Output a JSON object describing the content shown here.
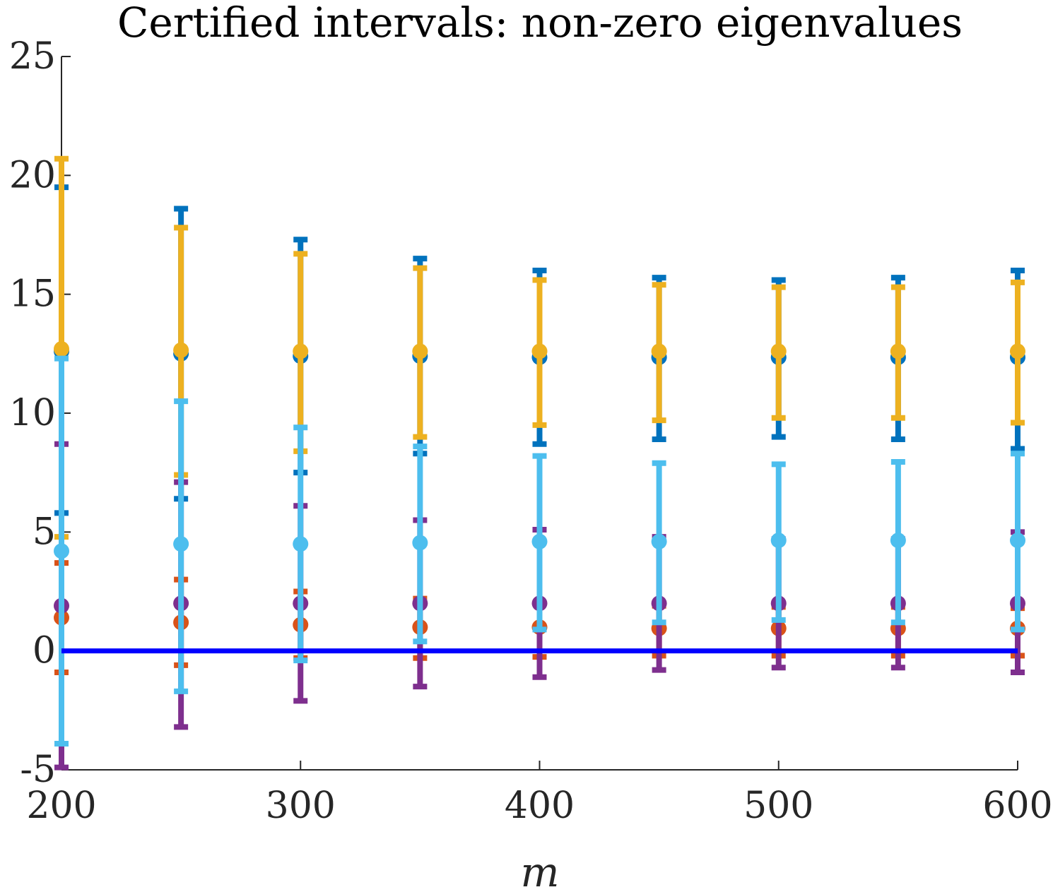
{
  "chart_data": {
    "type": "scatter",
    "title": "Certified intervals: non-zero eigenvalues",
    "xlabel": "m",
    "ylabel": "",
    "xlim": [
      200,
      600
    ],
    "ylim": [
      -5,
      25
    ],
    "xticks": [
      200,
      300,
      400,
      500,
      600
    ],
    "yticks": [
      -5,
      0,
      5,
      10,
      15,
      20,
      25
    ],
    "x": [
      200,
      250,
      300,
      350,
      400,
      450,
      500,
      550,
      600
    ],
    "series": [
      {
        "color": "#0072BD",
        "center": [
          12.6,
          12.5,
          12.4,
          12.4,
          12.35,
          12.35,
          12.35,
          12.35,
          12.35
        ],
        "lower": [
          5.8,
          6.4,
          7.5,
          8.3,
          8.7,
          8.9,
          9.0,
          8.9,
          8.5
        ],
        "upper": [
          19.5,
          18.6,
          17.3,
          16.5,
          16.0,
          15.7,
          15.6,
          15.7,
          16.0
        ]
      },
      {
        "color": "#D95319",
        "center": [
          1.4,
          1.2,
          1.1,
          1.0,
          1.0,
          0.95,
          0.95,
          0.95,
          0.95
        ],
        "lower": [
          -0.9,
          -0.6,
          -0.3,
          -0.3,
          -0.25,
          -0.2,
          -0.2,
          -0.2,
          -0.2
        ],
        "upper": [
          3.7,
          3.0,
          2.5,
          2.2,
          2.0,
          1.9,
          1.85,
          1.85,
          1.8
        ]
      },
      {
        "color": "#7E2F8E",
        "center": [
          1.9,
          2.0,
          2.0,
          2.0,
          2.0,
          2.0,
          2.0,
          2.0,
          2.0
        ],
        "lower": [
          -4.9,
          -3.2,
          -2.1,
          -1.5,
          -1.1,
          -0.8,
          -0.7,
          -0.7,
          -0.9
        ],
        "upper": [
          8.7,
          7.1,
          6.1,
          5.5,
          5.1,
          4.8,
          4.7,
          4.7,
          5.0
        ]
      },
      {
        "color": "#EDB120",
        "center": [
          12.7,
          12.65,
          12.6,
          12.6,
          12.6,
          12.6,
          12.6,
          12.6,
          12.6
        ],
        "lower": [
          4.8,
          7.4,
          8.4,
          9.0,
          9.5,
          9.7,
          9.8,
          9.8,
          9.6
        ],
        "upper": [
          20.7,
          17.8,
          16.7,
          16.1,
          15.6,
          15.4,
          15.3,
          15.3,
          15.5
        ]
      },
      {
        "color": "#4DBEEE",
        "center": [
          4.2,
          4.5,
          4.5,
          4.55,
          4.6,
          4.6,
          4.65,
          4.65,
          4.65
        ],
        "lower": [
          -3.9,
          -1.7,
          -0.4,
          0.4,
          0.9,
          1.2,
          1.3,
          1.2,
          0.9
        ],
        "upper": [
          12.3,
          10.5,
          9.4,
          8.6,
          8.2,
          7.9,
          7.85,
          7.95,
          8.3
        ]
      }
    ],
    "reference_line": {
      "y": 0,
      "color": "#0000FF"
    },
    "grid": false,
    "legend": "none"
  }
}
